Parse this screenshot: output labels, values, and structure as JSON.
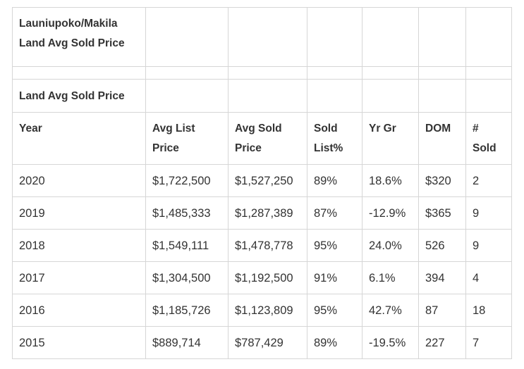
{
  "table": {
    "title_line1": "Launiupoko/Makila",
    "title_line2": "Land Avg Sold Price",
    "subtitle": "Land Avg Sold Price",
    "headers": [
      [
        "Year"
      ],
      [
        "Avg List",
        "Price"
      ],
      [
        "Avg Sold",
        "Price"
      ],
      [
        "Sold",
        "List%"
      ],
      [
        "Yr Gr"
      ],
      [
        "DOM"
      ],
      [
        "#",
        "Sold"
      ]
    ],
    "rows": [
      [
        "2020",
        "$1,722,500",
        "$1,527,250",
        "89%",
        "18.6%",
        "$320",
        "2"
      ],
      [
        "2019",
        "$1,485,333",
        "$1,287,389",
        "87%",
        "-12.9%",
        "$365",
        "9"
      ],
      [
        "2018",
        "$1,549,111",
        "$1,478,778",
        "95%",
        "24.0%",
        "526",
        "9"
      ],
      [
        "2017",
        "$1,304,500",
        "$1,192,500",
        "91%",
        "6.1%",
        "394",
        "4"
      ],
      [
        "2016",
        "$1,185,726",
        "$1,123,809",
        "95%",
        "42.7%",
        "87",
        "18"
      ],
      [
        "2015",
        "$889,714",
        "$787,429",
        "89%",
        "-19.5%",
        "227",
        "7"
      ]
    ]
  }
}
